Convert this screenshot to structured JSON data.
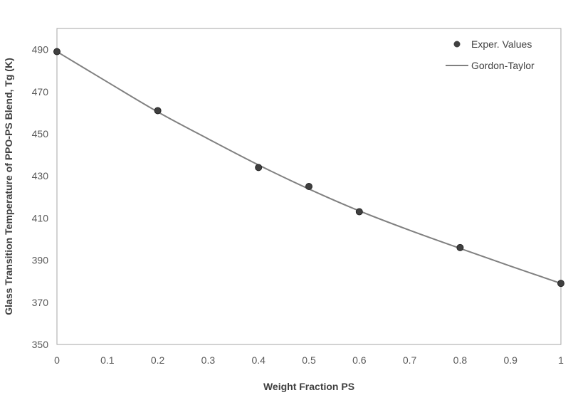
{
  "chart_data": {
    "type": "scatter",
    "xlabel": "Weight Fraction PS",
    "ylabel": "Glass Transition Temperature of PPO-PS Blend, Tg (K)",
    "xlim": [
      0,
      1
    ],
    "ylim": [
      350,
      500
    ],
    "x_ticks": [
      0,
      0.1,
      0.2,
      0.3,
      0.4,
      0.5,
      0.6,
      0.7,
      0.8,
      0.9,
      1
    ],
    "y_ticks": [
      350,
      370,
      390,
      410,
      430,
      450,
      470,
      490
    ],
    "grid": false,
    "legend_position": "top-right",
    "series": [
      {
        "name": "Exper. Values",
        "style": "markers",
        "color": "#404040",
        "x": [
          0,
          0.2,
          0.4,
          0.5,
          0.6,
          0.8,
          1
        ],
        "y": [
          489,
          461,
          434,
          425,
          413,
          396,
          379
        ]
      },
      {
        "name": "Gordon-Taylor",
        "style": "line",
        "color": "#808080",
        "x": [
          0,
          0.1,
          0.2,
          0.3,
          0.4,
          0.5,
          0.6,
          0.7,
          0.8,
          0.9,
          1
        ],
        "y": [
          489,
          474.6,
          460.4,
          447.6,
          435.2,
          423.8,
          413.4,
          404.2,
          395.6,
          387.2,
          379
        ]
      }
    ]
  }
}
